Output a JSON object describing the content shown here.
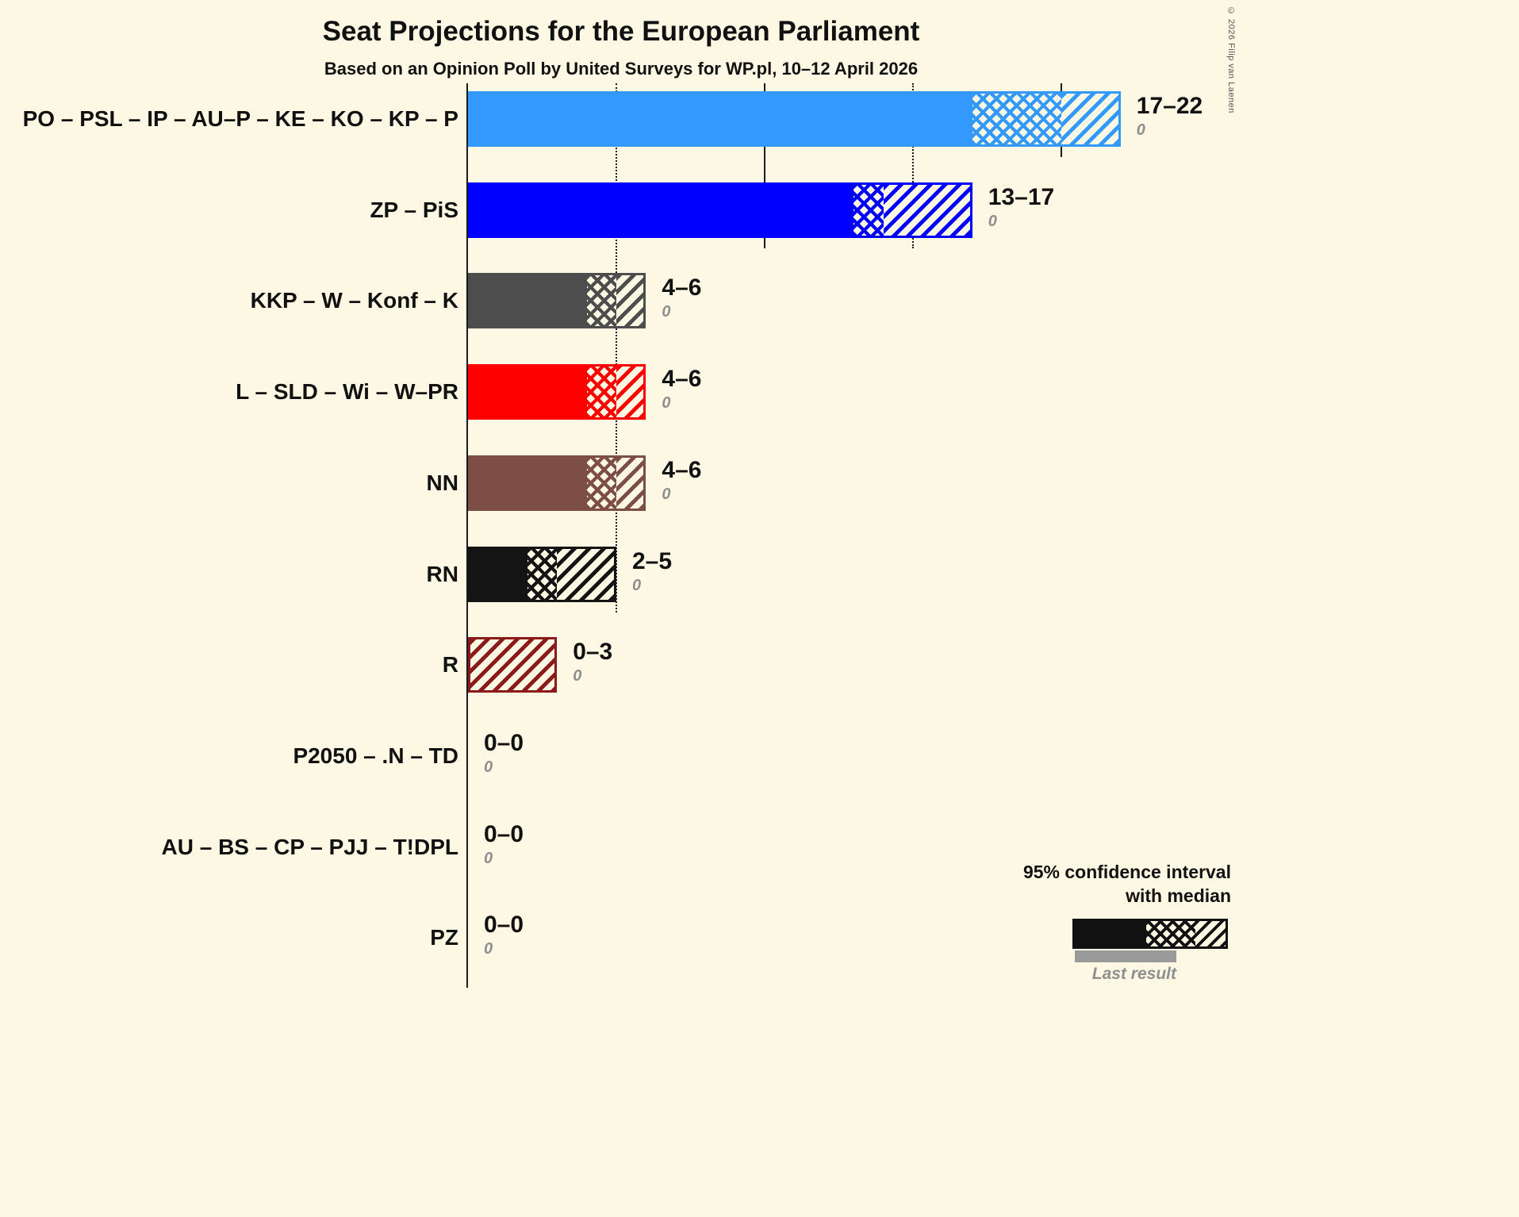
{
  "page": {
    "background": "#FCF8E3",
    "copyright": "© 2026 Filip van Laenen"
  },
  "header": {
    "title": "Seat Projections for the European Parliament",
    "subtitle": "Based on an Opinion Poll by United Surveys for WP.pl, 10–12 April 2026"
  },
  "legend": {
    "line1": "95% confidence interval",
    "line2": "with median",
    "last_result": "Last result"
  },
  "chart_data": {
    "type": "bar",
    "orientation": "horizontal",
    "unit": "seats",
    "x_axis": {
      "min": 0,
      "max": 22,
      "gridlines": [
        {
          "value": 5,
          "style": "dotted"
        },
        {
          "value": 10,
          "style": "solid"
        },
        {
          "value": 15,
          "style": "dotted"
        },
        {
          "value": 20,
          "style": "solid"
        }
      ]
    },
    "rows": [
      {
        "label": "PO – PSL – IP – AU–P – KE – KO – KP – P",
        "color": "#3399FF",
        "ci_low": 17,
        "median": 20,
        "ci_high": 22,
        "range_label": "17–22",
        "last_result": 0,
        "last_result_label": "0"
      },
      {
        "label": "ZP – PiS",
        "color": "#0000FF",
        "ci_low": 13,
        "median": 14,
        "ci_high": 17,
        "range_label": "13–17",
        "last_result": 0,
        "last_result_label": "0"
      },
      {
        "label": "KKP – W – Konf – K",
        "color": "#4D4D4D",
        "ci_low": 4,
        "median": 5,
        "ci_high": 6,
        "range_label": "4–6",
        "last_result": 0,
        "last_result_label": "0"
      },
      {
        "label": "L – SLD – Wi – W–PR",
        "color": "#FF0000",
        "ci_low": 4,
        "median": 5,
        "ci_high": 6,
        "range_label": "4–6",
        "last_result": 0,
        "last_result_label": "0"
      },
      {
        "label": "NN",
        "color": "#7D4F44",
        "ci_low": 4,
        "median": 5,
        "ci_high": 6,
        "range_label": "4–6",
        "last_result": 0,
        "last_result_label": "0"
      },
      {
        "label": "RN",
        "color": "#141414",
        "ci_low": 2,
        "median": 3,
        "ci_high": 5,
        "range_label": "2–5",
        "last_result": 0,
        "last_result_label": "0"
      },
      {
        "label": "R",
        "color": "#8B1A1A",
        "ci_low": 0,
        "median": 0,
        "ci_high": 3,
        "range_label": "0–3",
        "last_result": 0,
        "last_result_label": "0"
      },
      {
        "label": "P2050 – .N – TD",
        "color": null,
        "ci_low": 0,
        "median": 0,
        "ci_high": 0,
        "range_label": "0–0",
        "last_result": 0,
        "last_result_label": "0"
      },
      {
        "label": "AU – BS – CP – PJJ – T!DPL",
        "color": null,
        "ci_low": 0,
        "median": 0,
        "ci_high": 0,
        "range_label": "0–0",
        "last_result": 0,
        "last_result_label": "0"
      },
      {
        "label": "PZ",
        "color": null,
        "ci_low": 0,
        "median": 0,
        "ci_high": 0,
        "range_label": "0–0",
        "last_result": 0,
        "last_result_label": "0"
      }
    ]
  }
}
